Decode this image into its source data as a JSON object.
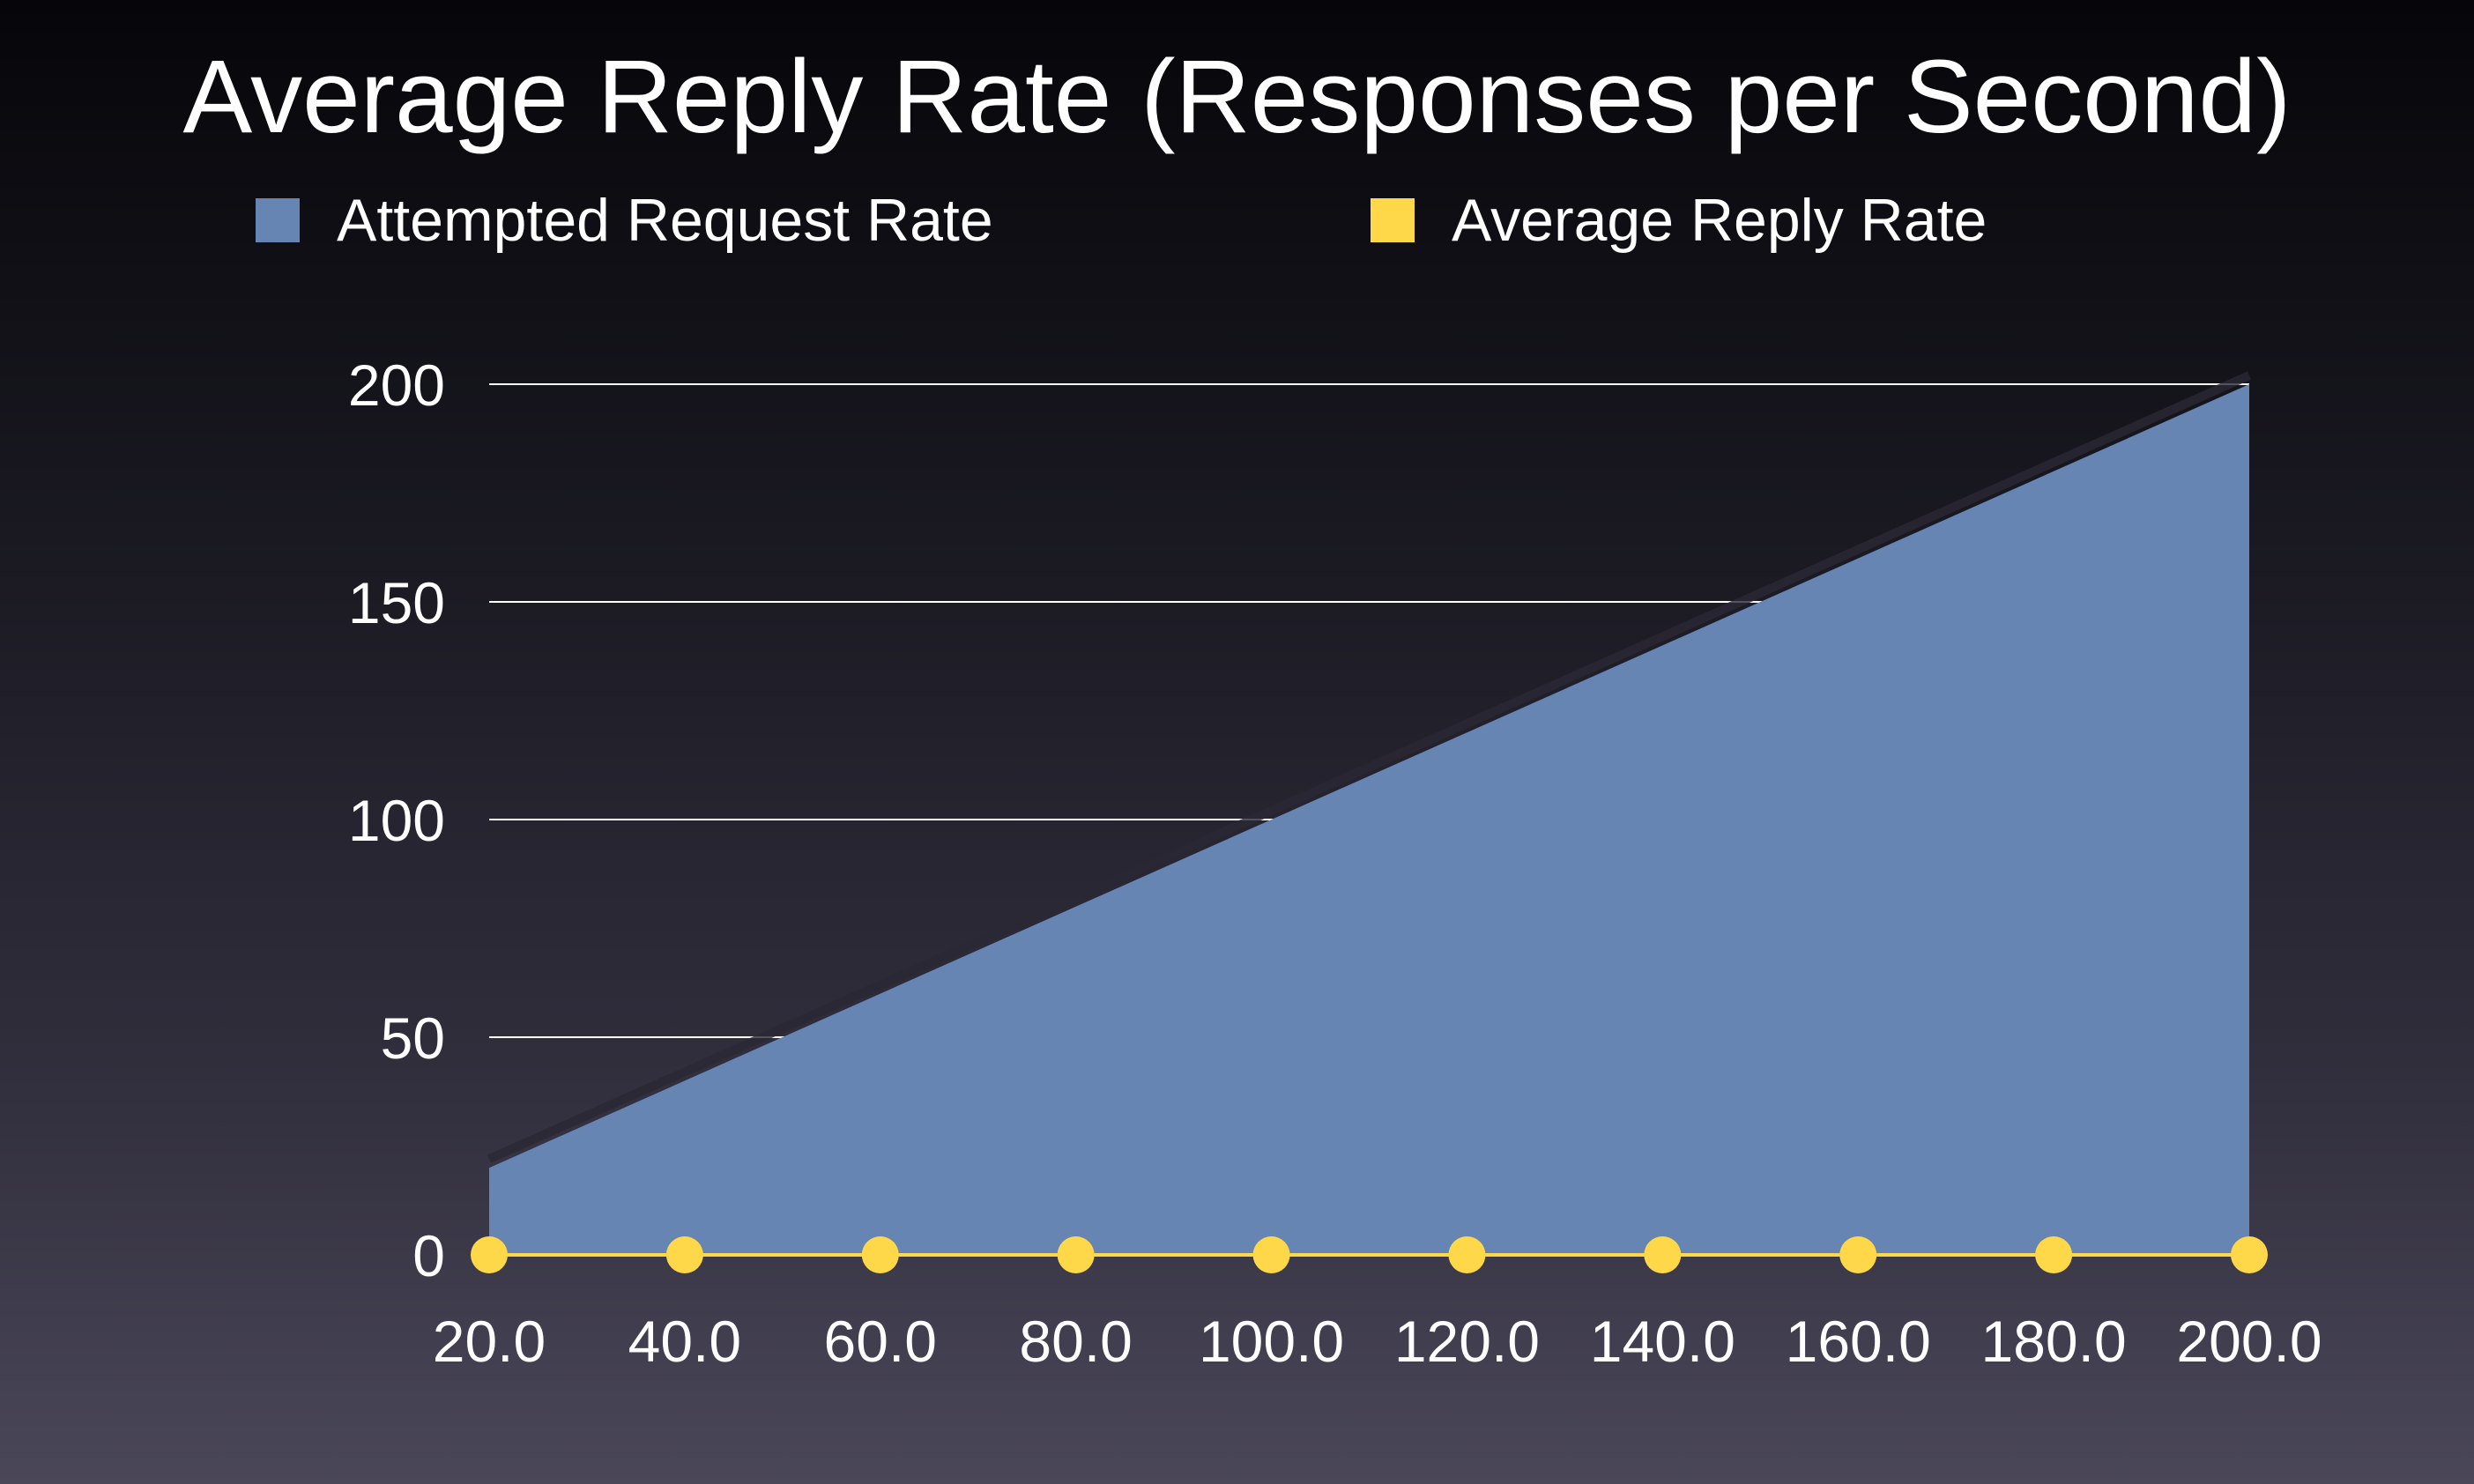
{
  "chart_data": {
    "type": "area",
    "title": "Average Reply Rate (Responses per Second)",
    "xlabel": "",
    "ylabel": "",
    "categories": [
      "20.0",
      "40.0",
      "60.0",
      "80.0",
      "100.0",
      "120.0",
      "140.0",
      "160.0",
      "180.0",
      "200.0"
    ],
    "yticks": [
      "0",
      "50",
      "100",
      "150",
      "200"
    ],
    "ylim": [
      0,
      200
    ],
    "grid": true,
    "legend_position": "top",
    "series": [
      {
        "name": "Attempted Request Rate",
        "kind": "area",
        "color": "#6785b2",
        "values": [
          20,
          40,
          60,
          80,
          100,
          120,
          140,
          160,
          180,
          200
        ]
      },
      {
        "name": "Average Reply Rate",
        "kind": "line-with-markers",
        "color": "#ffd84a",
        "values": [
          0,
          0,
          0,
          0,
          0,
          0,
          0,
          0,
          0,
          0
        ]
      }
    ]
  }
}
